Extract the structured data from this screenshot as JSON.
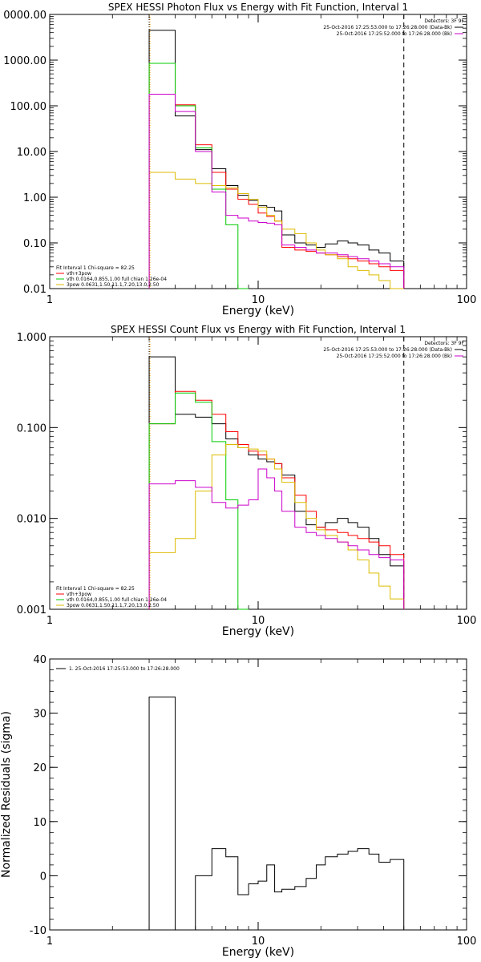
{
  "colors": {
    "total": "#000000",
    "model": "#ff0000",
    "thermal": "#00cc00",
    "powerlaw": "#ddbb00",
    "background": "#cc00cc",
    "threshold": "#ff9900"
  },
  "chart_data": [
    {
      "type": "line",
      "title": "SPEX HESSI Photon Flux vs Energy with Fit Function, Interval 1",
      "xlabel": "Energy (keV)",
      "ylabel": "",
      "xscale": "log",
      "yscale": "log",
      "xlim": [
        1,
        100
      ],
      "ylim": [
        0.01,
        10000
      ],
      "xticks": [
        "1",
        "10",
        "100"
      ],
      "yticks": [
        "0.01",
        "0.10",
        "1.00",
        "10.00",
        "100.00",
        "1000.00",
        "0000.00"
      ],
      "legend_right_title": "Detectors: 3F 9F",
      "legend_right": [
        "25-Oct-2016 17:25:53.000 to 17:26:28.000 (Data-Bk)",
        "25-Oct-2016 17:25:52.000 to 17:26:28.000 (Bk)"
      ],
      "legend_left_title": "Fit Interval 1   Chi-square = 82.25",
      "legend_left": [
        "vth+3pow",
        "vth 0.0164,0.855,1.00  full chian 1.26e-04",
        "3pow 0.0631,1.50,11.1,7.20,13.0,2.50"
      ],
      "markers": [
        3.0,
        50.0
      ],
      "bin_edges": [
        3.0,
        4.0,
        5.0,
        6.0,
        7.0,
        8.0,
        9.0,
        10.0,
        11.0,
        12.0,
        13.0,
        15.0,
        17.0,
        19.0,
        21.0,
        24.0,
        27.0,
        30.0,
        34.0,
        38.0,
        43.0,
        50.0
      ],
      "series": [
        {
          "name": "Data-Bk",
          "color_key": "total",
          "values": [
            4500,
            60,
            11,
            4.2,
            1.8,
            1.1,
            0.85,
            0.65,
            0.6,
            0.5,
            0.15,
            0.1,
            0.09,
            0.08,
            0.095,
            0.11,
            0.1,
            0.09,
            0.07,
            0.06,
            0.04
          ]
        },
        {
          "name": "vth+3pow",
          "color_key": "model",
          "values": [
            850,
            105,
            14,
            3.5,
            1.5,
            0.9,
            0.7,
            0.45,
            0.38,
            0.3,
            0.08,
            0.07,
            0.065,
            0.06,
            0.055,
            0.05,
            0.045,
            0.04,
            0.035,
            0.03,
            0.025
          ]
        },
        {
          "name": "vth",
          "color_key": "thermal",
          "values": [
            850,
            100,
            12,
            1.5,
            0.25,
            0.01
          ]
        },
        {
          "name": "3pow",
          "color_key": "powerlaw",
          "values": [
            3.5,
            2.5,
            2.0,
            1.8,
            1.6,
            1.2,
            0.9,
            0.6,
            0.4,
            0.3,
            0.2,
            0.16,
            0.1,
            0.07,
            0.055,
            0.045,
            0.03,
            0.025,
            0.02,
            0.015,
            0.01
          ]
        },
        {
          "name": "Bk",
          "color_key": "background",
          "values": [
            180,
            75,
            10,
            1.3,
            0.4,
            0.35,
            0.3,
            0.28,
            0.27,
            0.25,
            0.09,
            0.08,
            0.07,
            0.06,
            0.06,
            0.055,
            0.05,
            0.045,
            0.04,
            0.035,
            0.03
          ]
        }
      ]
    },
    {
      "type": "line",
      "title": "SPEX HESSI Count Flux vs Energy with Fit Function, Interval 1",
      "xlabel": "Energy (keV)",
      "ylabel": "",
      "xscale": "log",
      "yscale": "log",
      "xlim": [
        1,
        100
      ],
      "ylim": [
        0.001,
        1
      ],
      "xticks": [
        "1",
        "10",
        "100"
      ],
      "yticks": [
        "0.001",
        "0.010",
        "0.100",
        "1.000"
      ],
      "legend_right_title": "Detectors: 3F 9F",
      "legend_right": [
        "25-Oct-2016 17:25:53.000 to 17:26:28.000 (Data-Bk)",
        "25-Oct-2016 17:25:52.000 to 17:26:28.000 (Bk)"
      ],
      "legend_left_title": "Fit Interval 1   Chi-square = 82.25",
      "legend_left": [
        "vth+3pow",
        "vth 0.0164,0.855,1.00  full chian 1.26e-04",
        "3pow 0.0631,1.50,11.1,7.20,13.0,2.50"
      ],
      "markers": [
        3.0,
        50.0
      ],
      "bin_edges": [
        3.0,
        4.0,
        5.0,
        6.0,
        7.0,
        8.0,
        9.0,
        10.0,
        11.0,
        12.0,
        13.0,
        15.0,
        17.0,
        19.0,
        21.0,
        24.0,
        27.0,
        30.0,
        34.0,
        38.0,
        43.0,
        50.0
      ],
      "series": [
        {
          "name": "Data-Bk",
          "color_key": "total",
          "values": [
            0.6,
            0.14,
            0.13,
            0.11,
            0.075,
            0.06,
            0.05,
            0.045,
            0.042,
            0.04,
            0.03,
            0.012,
            0.0085,
            0.008,
            0.009,
            0.01,
            0.009,
            0.008,
            0.006,
            0.004,
            0.003
          ]
        },
        {
          "name": "vth+3pow",
          "color_key": "model",
          "values": [
            0.11,
            0.25,
            0.2,
            0.14,
            0.09,
            0.065,
            0.055,
            0.05,
            0.045,
            0.04,
            0.028,
            0.018,
            0.012,
            0.008,
            0.0075,
            0.007,
            0.0065,
            0.006,
            0.0055,
            0.005,
            0.004
          ]
        },
        {
          "name": "vth",
          "color_key": "thermal",
          "values": [
            0.11,
            0.24,
            0.19,
            0.07,
            0.016,
            0.001
          ]
        },
        {
          "name": "3pow",
          "color_key": "powerlaw",
          "values": [
            0.0042,
            0.006,
            0.02,
            0.05,
            0.065,
            0.06,
            0.058,
            0.055,
            0.045,
            0.035,
            0.025,
            0.015,
            0.01,
            0.0075,
            0.0065,
            0.0055,
            0.0045,
            0.0035,
            0.0025,
            0.0018,
            0.0013
          ]
        },
        {
          "name": "Bk",
          "color_key": "background",
          "values": [
            0.024,
            0.026,
            0.022,
            0.015,
            0.013,
            0.014,
            0.016,
            0.035,
            0.028,
            0.02,
            0.012,
            0.008,
            0.007,
            0.0065,
            0.006,
            0.0055,
            0.005,
            0.0045,
            0.004,
            0.0037,
            0.0035
          ]
        }
      ]
    },
    {
      "type": "line",
      "title": "",
      "xlabel": "Energy (keV)",
      "ylabel": "Normalized Residuals (sigma)",
      "xscale": "log",
      "yscale": "linear",
      "xlim": [
        1,
        100
      ],
      "ylim": [
        -10,
        40
      ],
      "xticks": [
        "1",
        "10",
        "100"
      ],
      "yticks": [
        "-10",
        "0",
        "10",
        "20",
        "30",
        "40"
      ],
      "legend_right_title": "",
      "legend_right": [],
      "legend_left_title": "",
      "legend_left": [],
      "legend_top": "1. 25-Oct-2016 17:25:53.000 to 17:26:28.000",
      "markers": [],
      "bin_edges": [
        3.0,
        4.0,
        5.0,
        6.0,
        7.0,
        8.0,
        9.0,
        10.0,
        11.0,
        12.0,
        13.0,
        15.0,
        17.0,
        19.0,
        21.0,
        24.0,
        27.0,
        30.0,
        34.0,
        38.0,
        43.0,
        50.0
      ],
      "series": [
        {
          "name": "1. 25-Oct-2016 17:25:53.000 to 17:26:28.000",
          "color_key": "total",
          "values": [
            33,
            -10.5,
            0,
            5,
            3.5,
            -3.5,
            -1.5,
            -1,
            2,
            -3,
            -2.5,
            -2,
            -0.5,
            2,
            3.5,
            4,
            4.5,
            5,
            4,
            2.5,
            3
          ]
        }
      ]
    }
  ]
}
